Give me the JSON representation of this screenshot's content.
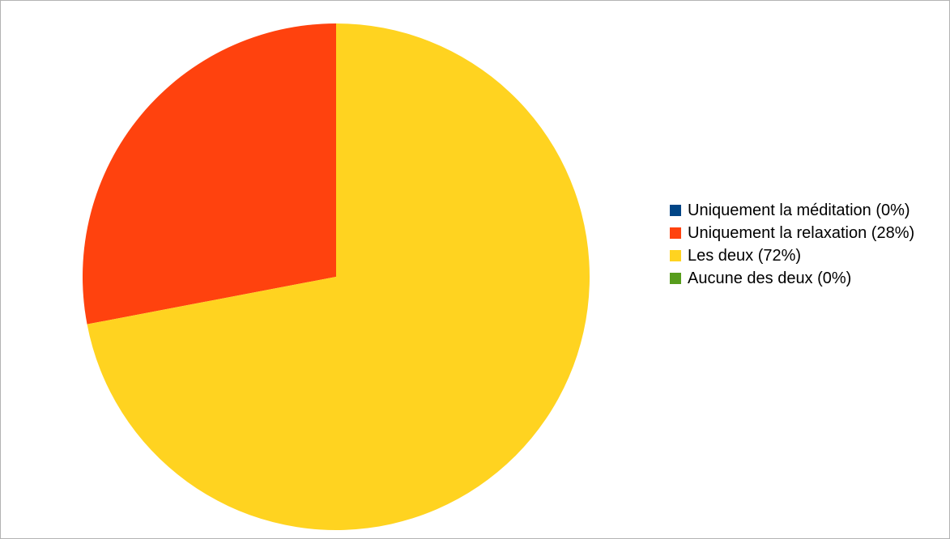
{
  "chart_data": {
    "type": "pie",
    "title": "",
    "categories": [
      "Uniquement la méditation (0%)",
      "Uniquement la relaxation (28%)",
      "Les deux (72%)",
      "Aucune des deux (0%)"
    ],
    "values": [
      0,
      28,
      72,
      0
    ],
    "colors": [
      "#004586",
      "#ff420e",
      "#ffd320",
      "#579d1c"
    ],
    "start_angle_deg": 0,
    "direction": "counterclockwise",
    "legend_position": "right"
  }
}
